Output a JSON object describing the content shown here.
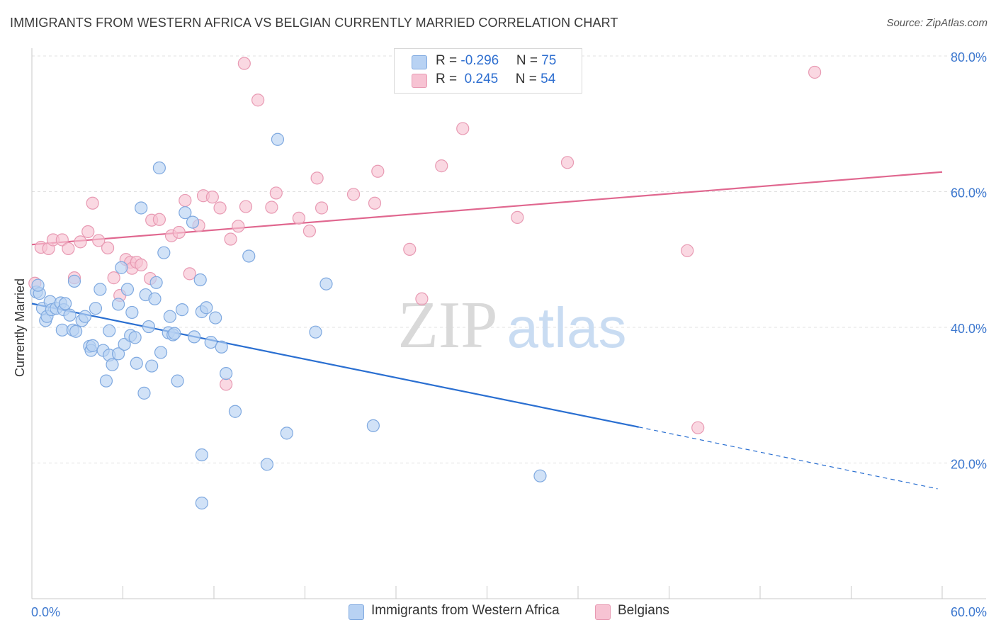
{
  "title": "IMMIGRANTS FROM WESTERN AFRICA VS BELGIAN CURRENTLY MARRIED CORRELATION CHART",
  "source": "Source: ZipAtlas.com",
  "watermark": {
    "zip": "ZIP",
    "atlas": "atlas"
  },
  "legend": {
    "rows": [
      {
        "r_label": "R = ",
        "r_value": "-0.296",
        "n_label": "N = ",
        "n_value": "75"
      },
      {
        "r_label": "R = ",
        "r_value": " 0.245",
        "n_label": "N = ",
        "n_value": "54"
      }
    ]
  },
  "colors": {
    "blue_fill": "#b8d2f3",
    "blue_stroke": "#7fa9e0",
    "blue_line": "#2a6fd1",
    "pink_fill": "#f7c3d3",
    "pink_stroke": "#e89ab3",
    "pink_line": "#e0678f",
    "tick_text": "#3d78cf",
    "grid": "#e0e0e0"
  },
  "chart_data": {
    "type": "scatter",
    "title": "IMMIGRANTS FROM WESTERN AFRICA VS BELGIAN CURRENTLY MARRIED CORRELATION CHART",
    "xlabel": "",
    "ylabel": "Currently Married",
    "xlim": [
      0,
      60
    ],
    "ylim": [
      0,
      80
    ],
    "x_tick_labels": [
      "0.0%",
      "60.0%"
    ],
    "y_ticks": [
      20,
      40,
      60,
      80
    ],
    "y_tick_labels": [
      "20.0%",
      "40.0%",
      "60.0%",
      "80.0%"
    ],
    "grid": true,
    "legend_position": "bottom",
    "series": [
      {
        "name": "Immigrants from Western Africa",
        "color": "#b8d2f3",
        "trend": {
          "x0": 0,
          "y0": 43.5,
          "x1": 40.0,
          "y1": 25.3,
          "dash_to_x": 59.7,
          "dash_to_y": 16.2
        },
        "points": [
          [
            0.3,
            45.2
          ],
          [
            0.5,
            45.0
          ],
          [
            0.7,
            42.8
          ],
          [
            0.9,
            41.0
          ],
          [
            1.0,
            41.6
          ],
          [
            1.2,
            43.8
          ],
          [
            1.3,
            42.6
          ],
          [
            1.6,
            42.8
          ],
          [
            1.9,
            43.6
          ],
          [
            2.1,
            42.6
          ],
          [
            2.2,
            43.5
          ],
          [
            2.0,
            39.6
          ],
          [
            2.7,
            39.6
          ],
          [
            2.9,
            39.4
          ],
          [
            2.8,
            46.8
          ],
          [
            3.3,
            41.0
          ],
          [
            3.5,
            41.6
          ],
          [
            3.8,
            37.2
          ],
          [
            3.9,
            36.6
          ],
          [
            4.0,
            37.3
          ],
          [
            4.2,
            42.8
          ],
          [
            4.5,
            45.6
          ],
          [
            4.7,
            36.6
          ],
          [
            4.9,
            32.1
          ],
          [
            5.1,
            35.9
          ],
          [
            5.1,
            39.5
          ],
          [
            5.3,
            34.5
          ],
          [
            5.7,
            43.4
          ],
          [
            5.7,
            36.1
          ],
          [
            5.9,
            48.8
          ],
          [
            6.1,
            37.5
          ],
          [
            6.3,
            45.6
          ],
          [
            6.5,
            38.8
          ],
          [
            6.6,
            42.2
          ],
          [
            6.8,
            38.5
          ],
          [
            6.9,
            34.7
          ],
          [
            7.2,
            57.6
          ],
          [
            7.4,
            30.3
          ],
          [
            7.5,
            44.8
          ],
          [
            7.7,
            40.1
          ],
          [
            7.9,
            34.3
          ],
          [
            8.1,
            44.2
          ],
          [
            8.2,
            46.6
          ],
          [
            8.4,
            63.5
          ],
          [
            8.5,
            36.3
          ],
          [
            8.7,
            51.0
          ],
          [
            9.0,
            39.2
          ],
          [
            9.1,
            41.6
          ],
          [
            9.3,
            38.9
          ],
          [
            9.4,
            39.1
          ],
          [
            9.6,
            32.1
          ],
          [
            9.9,
            42.6
          ],
          [
            10.1,
            56.9
          ],
          [
            10.7,
            38.6
          ],
          [
            10.6,
            55.5
          ],
          [
            11.1,
            47.0
          ],
          [
            11.2,
            42.3
          ],
          [
            11.2,
            21.2
          ],
          [
            11.2,
            14.1
          ],
          [
            11.5,
            42.9
          ],
          [
            11.8,
            37.8
          ],
          [
            12.1,
            41.4
          ],
          [
            12.5,
            37.1
          ],
          [
            12.8,
            33.2
          ],
          [
            13.4,
            27.6
          ],
          [
            14.3,
            50.5
          ],
          [
            15.5,
            19.8
          ],
          [
            16.2,
            67.7
          ],
          [
            16.8,
            24.4
          ],
          [
            18.7,
            39.3
          ],
          [
            19.4,
            46.4
          ],
          [
            22.5,
            25.5
          ],
          [
            33.5,
            18.1
          ],
          [
            0.4,
            46.2
          ],
          [
            2.5,
            41.8
          ]
        ]
      },
      {
        "name": "Belgians",
        "color": "#f7c3d3",
        "trend": {
          "x0": 0,
          "y0": 52.2,
          "x1": 60.0,
          "y1": 62.9
        },
        "points": [
          [
            0.2,
            46.5
          ],
          [
            0.6,
            51.8
          ],
          [
            1.1,
            51.6
          ],
          [
            1.4,
            52.9
          ],
          [
            2.0,
            52.9
          ],
          [
            2.4,
            51.6
          ],
          [
            2.8,
            47.3
          ],
          [
            3.2,
            52.6
          ],
          [
            3.7,
            54.1
          ],
          [
            4.0,
            58.3
          ],
          [
            4.4,
            52.8
          ],
          [
            5.0,
            51.7
          ],
          [
            5.4,
            47.3
          ],
          [
            5.8,
            44.7
          ],
          [
            6.2,
            50.0
          ],
          [
            6.5,
            49.6
          ],
          [
            6.6,
            48.7
          ],
          [
            6.9,
            49.6
          ],
          [
            7.2,
            49.2
          ],
          [
            7.8,
            47.2
          ],
          [
            7.9,
            55.8
          ],
          [
            8.4,
            55.9
          ],
          [
            9.2,
            53.5
          ],
          [
            9.7,
            54.0
          ],
          [
            10.1,
            58.7
          ],
          [
            10.4,
            47.9
          ],
          [
            11.0,
            55.0
          ],
          [
            11.3,
            59.4
          ],
          [
            11.9,
            59.2
          ],
          [
            12.4,
            57.6
          ],
          [
            12.8,
            31.6
          ],
          [
            13.1,
            53.0
          ],
          [
            13.6,
            54.9
          ],
          [
            14.1,
            57.8
          ],
          [
            14.0,
            78.9
          ],
          [
            14.9,
            73.5
          ],
          [
            15.8,
            57.7
          ],
          [
            16.1,
            59.8
          ],
          [
            17.6,
            56.1
          ],
          [
            18.3,
            54.2
          ],
          [
            18.8,
            62.0
          ],
          [
            19.1,
            57.6
          ],
          [
            21.2,
            59.6
          ],
          [
            22.6,
            58.3
          ],
          [
            22.8,
            63.0
          ],
          [
            24.9,
            51.5
          ],
          [
            25.7,
            44.2
          ],
          [
            27.0,
            63.8
          ],
          [
            28.4,
            69.3
          ],
          [
            32.0,
            56.2
          ],
          [
            35.3,
            64.3
          ],
          [
            43.2,
            51.3
          ],
          [
            43.9,
            25.2
          ],
          [
            51.6,
            77.6
          ]
        ]
      }
    ]
  }
}
